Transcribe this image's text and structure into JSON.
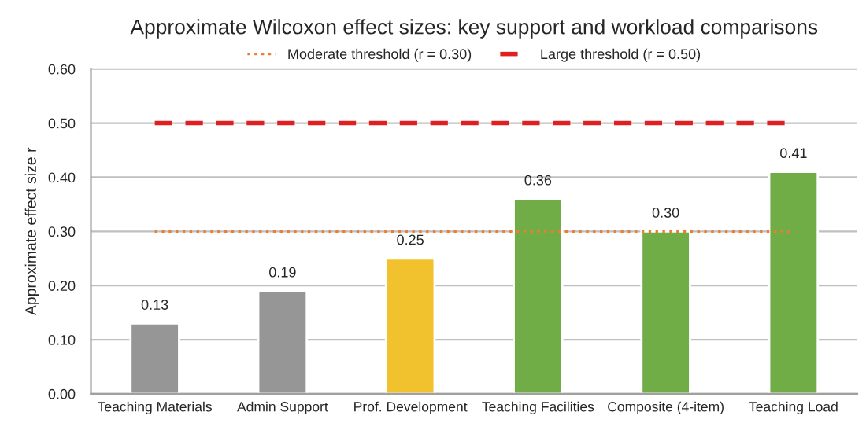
{
  "chart_data": {
    "type": "bar",
    "title": "Approximate Wilcoxon effect sizes: key support and workload comparisons",
    "ylabel": "Approximate effect size r",
    "categories": [
      "Teaching Materials",
      "Admin Support",
      "Prof. Development",
      "Teaching Facilities",
      "Composite (4-item)",
      "Teaching Load"
    ],
    "values": [
      0.13,
      0.19,
      0.25,
      0.36,
      0.3,
      0.41
    ],
    "colors": [
      "#969696",
      "#969696",
      "#f2c12e",
      "#70ad47",
      "#70ad47",
      "#70ad47"
    ],
    "value_labels": [
      "0.13",
      "0.19",
      "0.25",
      "0.36",
      "0.30",
      "0.41"
    ],
    "ref_lines": [
      {
        "axis": "y",
        "value": 0.3,
        "label": "Moderate threshold (r = 0.30)",
        "color": "#ed7d31",
        "line_style": "dotted"
      },
      {
        "axis": "y",
        "value": 0.5,
        "label": "Large threshold (r = 0.50)",
        "color": "#e02020",
        "line_style": "dashed"
      }
    ],
    "ylim": [
      0,
      0.6
    ],
    "yticks": [
      {
        "value": 0,
        "label": "0.00"
      },
      {
        "value": 0.1,
        "label": "0.10"
      },
      {
        "value": 0.2,
        "label": "0.20"
      },
      {
        "value": 0.3,
        "label": "0.30"
      },
      {
        "value": 0.4,
        "label": "0.40"
      },
      {
        "value": 0.5,
        "label": "0.50"
      },
      {
        "value": 0.6,
        "label": "0.60"
      }
    ],
    "grid": "y",
    "legend": "top"
  }
}
